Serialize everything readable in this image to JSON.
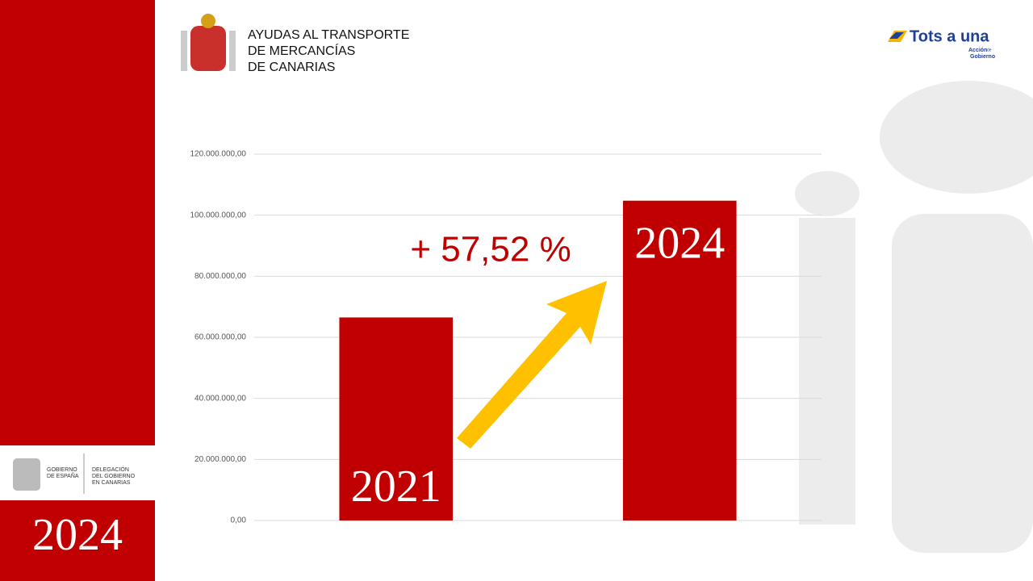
{
  "slide": {
    "header_lines": [
      "AYUDAS AL TRANSPORTE",
      "DE MERCANCÍAS",
      "DE CANARIAS"
    ],
    "brand": "Tots a una",
    "brand_sub": [
      "Acción",
      "de",
      "Gobierno"
    ],
    "gov_lines": [
      "GOBIERNO",
      "DE ESPAÑA"
    ],
    "delegation_lines": [
      "DELEGACIÓN",
      "DEL GOBIERNO",
      "EN CANARIAS"
    ],
    "side_year": "2024"
  },
  "chart_data": {
    "type": "bar",
    "categories": [
      "2021",
      "2024"
    ],
    "values": [
      66500000,
      104750000
    ],
    "color": "#c00000",
    "annotation": "+ 57,52 %",
    "ylim": [
      0,
      120000000
    ],
    "yticks": [
      {
        "value": 0,
        "label": "0,00"
      },
      {
        "value": 20000000,
        "label": "20.000.000,00"
      },
      {
        "value": 40000000,
        "label": "40.000.000,00"
      },
      {
        "value": 60000000,
        "label": "60.000.000,00"
      },
      {
        "value": 80000000,
        "label": "80.000.000,00"
      },
      {
        "value": 100000000,
        "label": "100.000.000,00"
      },
      {
        "value": 120000000,
        "label": "120.000.000,00"
      }
    ],
    "grid": true
  }
}
